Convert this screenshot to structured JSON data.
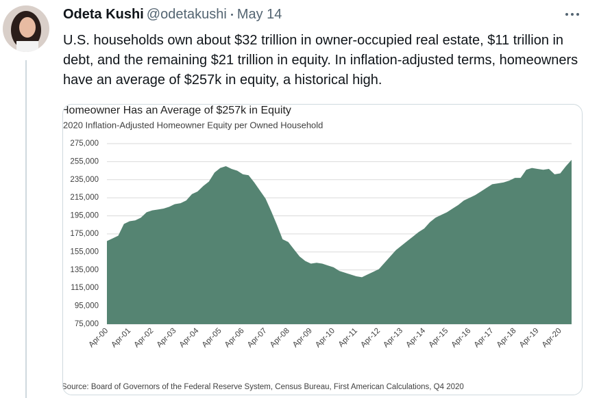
{
  "tweet": {
    "name": "Odeta Kushi",
    "handle": "@odetakushi",
    "date": "May 14",
    "text": "U.S. households own about $32 trillion in owner-occupied real estate, $11 trillion in debt, and the remaining $21 trillion in equity. In inflation-adjusted terms, homeowners have an average of $257k in equity, a historical high."
  },
  "chart_data": {
    "type": "area",
    "title": "Homeowner Has an Average of $257k in Equity",
    "subtitle": "2020 Inflation-Adjusted Homeowner Equity per Owned Household",
    "source": "Source: Board of Governors of the Federal Reserve System, Census Bureau, First American Calculations, Q4 2020",
    "color": "#558472",
    "grid": true,
    "categories": [
      "Apr-00",
      null,
      null,
      null,
      "Apr-01",
      null,
      null,
      null,
      "Apr-02",
      null,
      null,
      null,
      "Apr-03",
      null,
      null,
      null,
      "Apr-04",
      null,
      null,
      null,
      "Apr-05",
      null,
      null,
      null,
      "Apr-06",
      null,
      null,
      null,
      "Apr-07",
      null,
      null,
      null,
      "Apr-08",
      null,
      null,
      null,
      "Apr-09",
      null,
      null,
      null,
      "Apr-10",
      null,
      null,
      null,
      "Apr-11",
      null,
      null,
      null,
      "Apr-12",
      null,
      null,
      null,
      "Apr-13",
      null,
      null,
      null,
      "Apr-14",
      null,
      null,
      null,
      "Apr-15",
      null,
      null,
      null,
      "Apr-16",
      null,
      null,
      null,
      "Apr-17",
      null,
      null,
      null,
      "Apr-18",
      null,
      null,
      null,
      "Apr-19",
      null,
      null,
      null,
      "Apr-20",
      null,
      null
    ],
    "values": [
      167000,
      170000,
      173000,
      186000,
      189000,
      190000,
      193000,
      199000,
      201000,
      202000,
      203000,
      205000,
      208000,
      209000,
      212000,
      219000,
      222000,
      228000,
      233000,
      243000,
      248000,
      250000,
      247000,
      245000,
      241000,
      240000,
      232000,
      223000,
      214000,
      200000,
      185000,
      169000,
      166000,
      158000,
      150000,
      145000,
      142000,
      143000,
      142000,
      140000,
      138000,
      134000,
      132000,
      130000,
      128000,
      127000,
      130000,
      133000,
      136000,
      143000,
      150000,
      157000,
      162000,
      167000,
      172000,
      177000,
      181000,
      188000,
      193000,
      196000,
      199000,
      203000,
      207000,
      212000,
      215000,
      218000,
      222000,
      226000,
      230000,
      231000,
      232000,
      234000,
      237000,
      237000,
      246000,
      248000,
      247000,
      246000,
      247000,
      241000,
      242000,
      250000,
      257000
    ],
    "ylim": [
      75000,
      275000
    ],
    "yticks": [
      {
        "value": 75000,
        "label": "75,000"
      },
      {
        "value": 95000,
        "label": "95,000"
      },
      {
        "value": 115000,
        "label": "115,000"
      },
      {
        "value": 135000,
        "label": "135,000"
      },
      {
        "value": 155000,
        "label": "155,000"
      },
      {
        "value": 175000,
        "label": "175,000"
      },
      {
        "value": 195000,
        "label": "195,000"
      },
      {
        "value": 215000,
        "label": "215,000"
      },
      {
        "value": 235000,
        "label": "235,000"
      },
      {
        "value": 255000,
        "label": "255,000"
      },
      {
        "value": 275000,
        "label": "275,000"
      }
    ]
  }
}
